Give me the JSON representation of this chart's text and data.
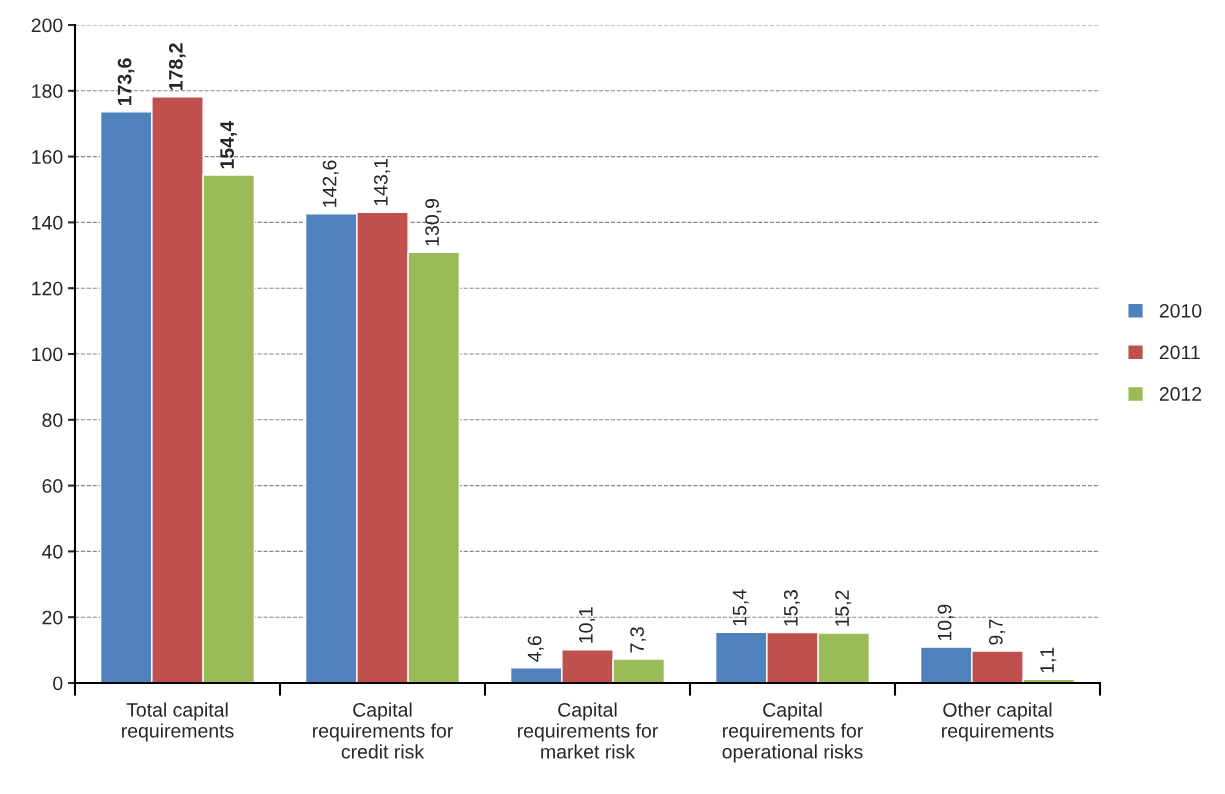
{
  "chart_data": {
    "type": "bar",
    "categories": [
      "Total capital\nrequirements",
      "Capital\nrequirements for\ncredit risk",
      "Capital\nrequirements for\nmarket risk",
      "Capital\nrequirements for\noperational risks",
      "Other capital\nrequirements"
    ],
    "series": [
      {
        "name": "2010",
        "color": "#4f81bd",
        "values": [
          173.6,
          142.6,
          4.6,
          15.4,
          10.9
        ],
        "value_labels": [
          "173,6",
          "142,6",
          "4,6",
          "15,4",
          "10,9"
        ]
      },
      {
        "name": "2011",
        "color": "#c0504d",
        "values": [
          178.2,
          143.1,
          10.1,
          15.3,
          9.7
        ],
        "value_labels": [
          "178,2",
          "143,1",
          "10,1",
          "15,3",
          "9,7"
        ]
      },
      {
        "name": "2012",
        "color": "#9bbb59",
        "values": [
          154.4,
          130.9,
          7.3,
          15.2,
          1.1
        ],
        "value_labels": [
          "154,4",
          "130,9",
          "7,3",
          "15,2",
          "1,1"
        ]
      }
    ],
    "ylim": [
      0,
      200
    ],
    "yticks": [
      0,
      20,
      40,
      60,
      80,
      100,
      120,
      140,
      160,
      180,
      200
    ],
    "grid": "y",
    "legend": "right"
  }
}
